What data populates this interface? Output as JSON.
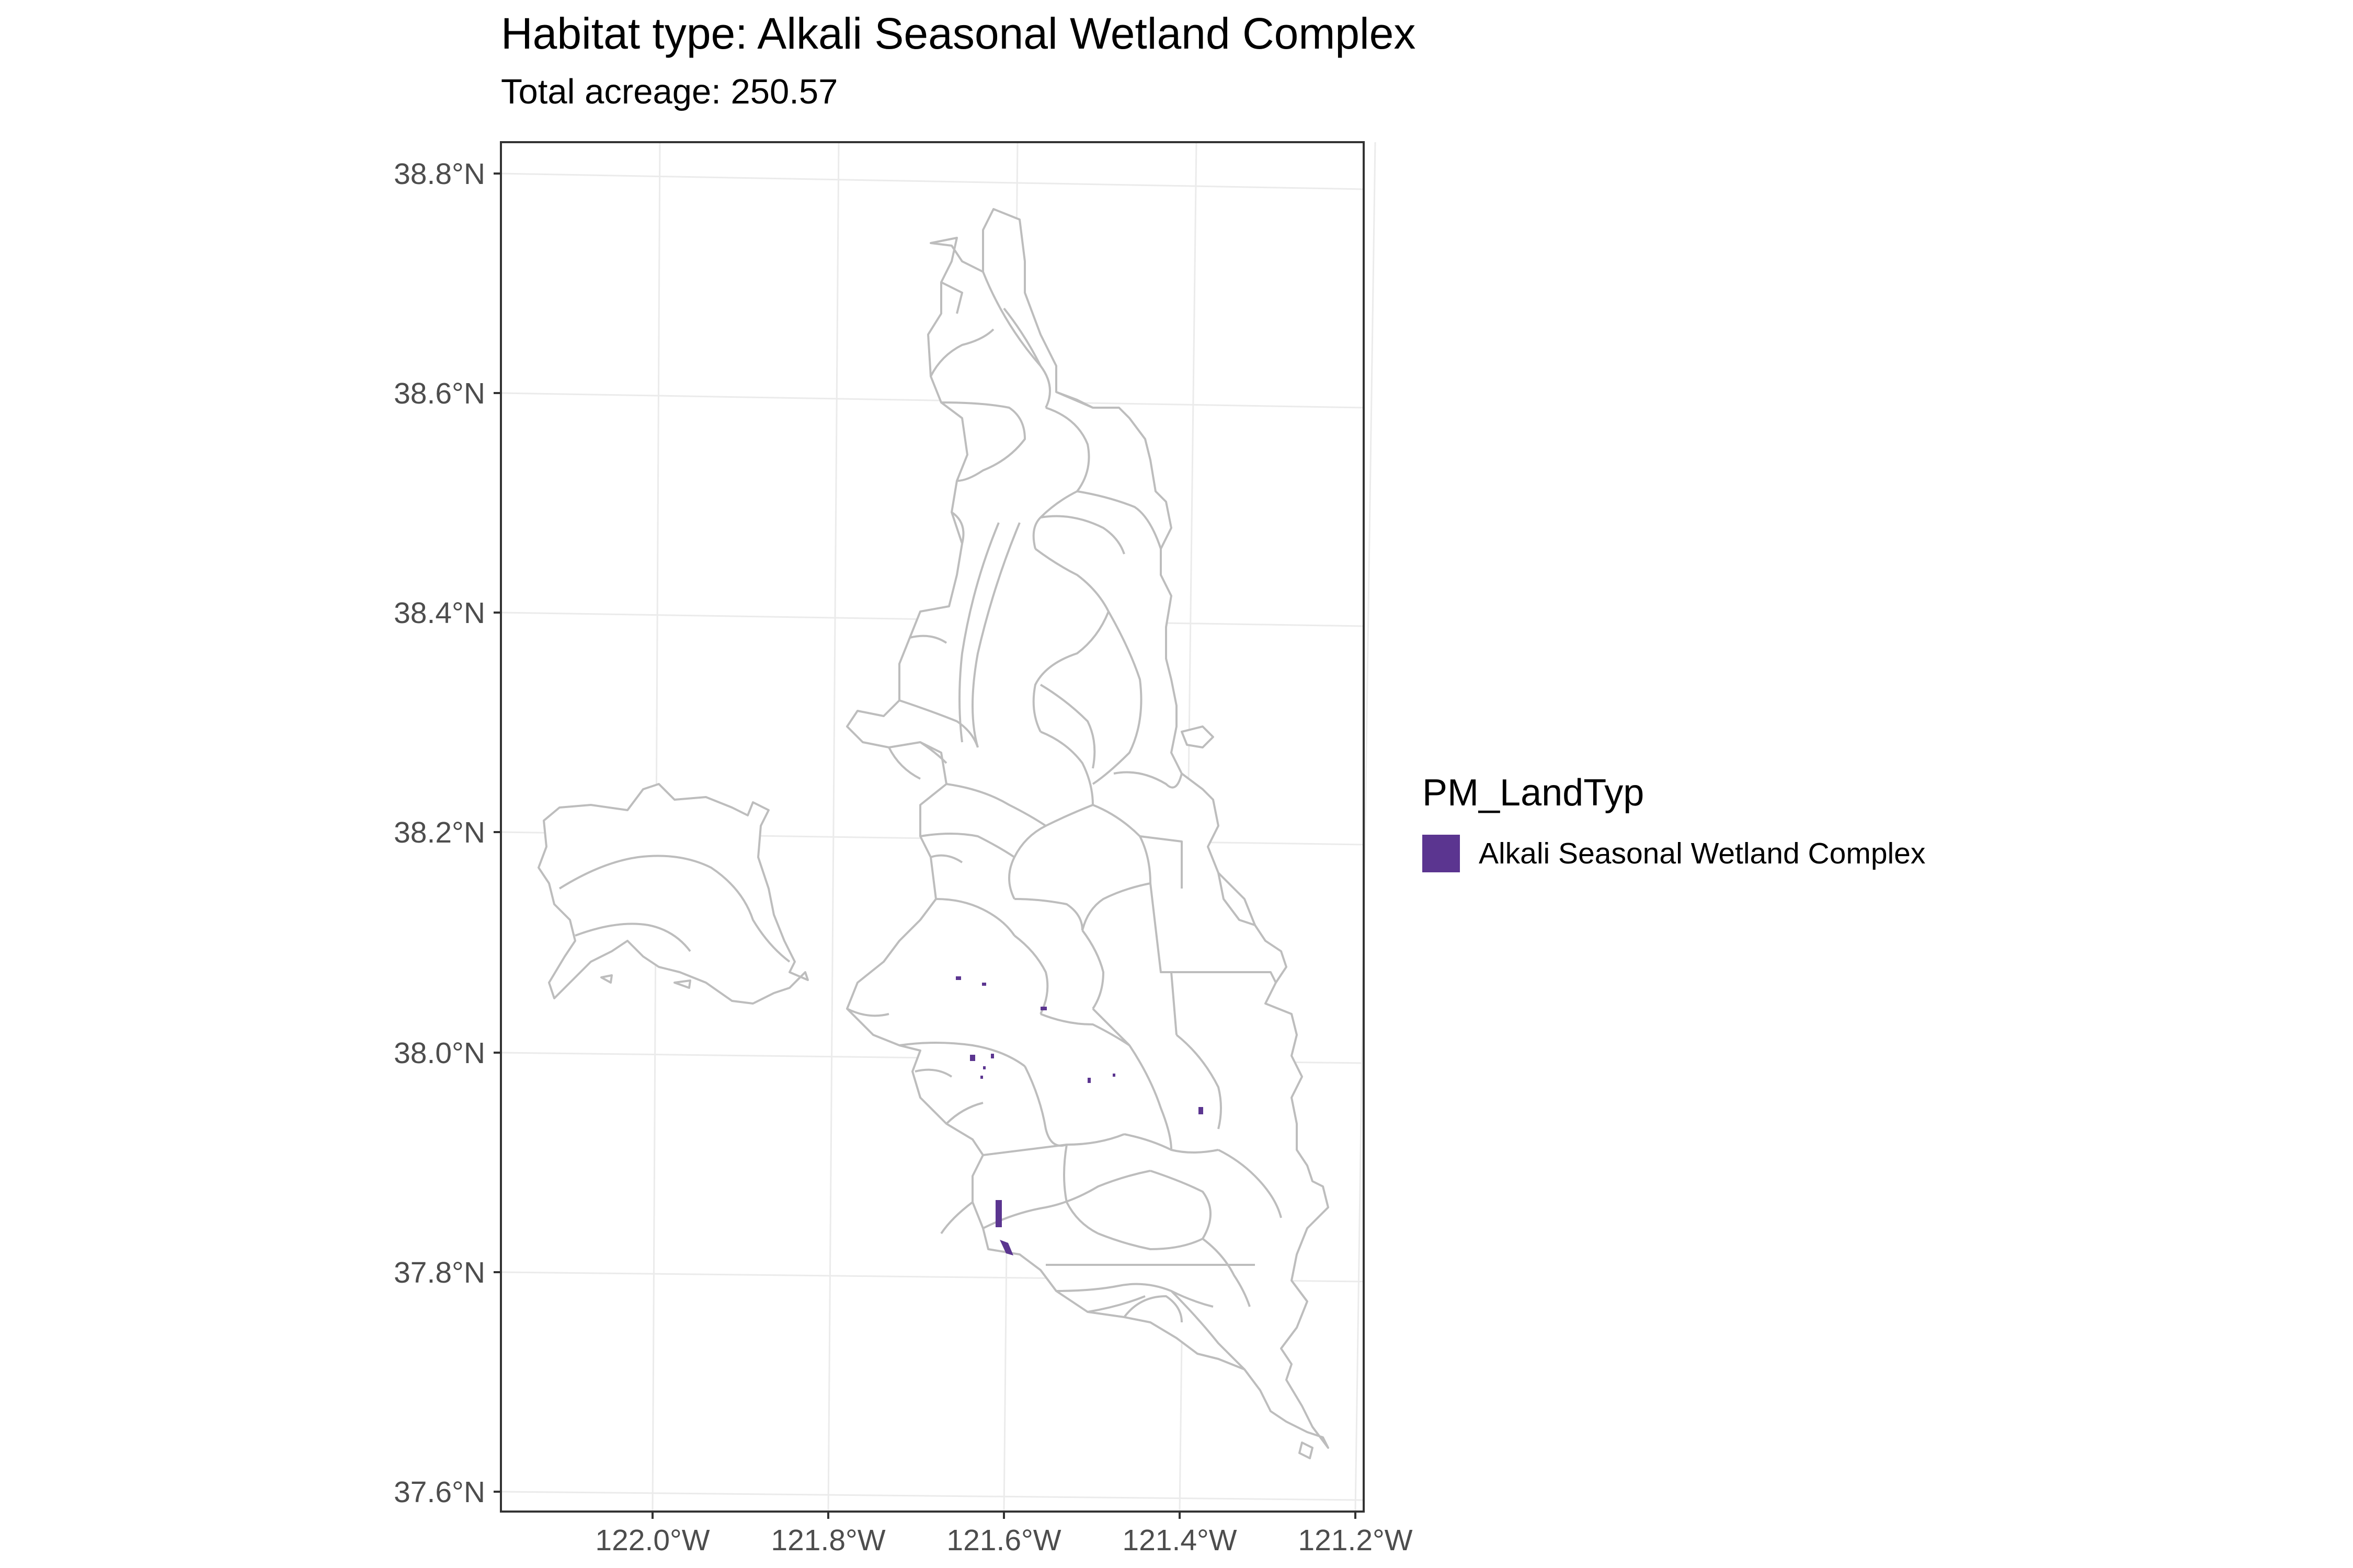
{
  "title": "Habitat type: Alkali Seasonal Wetland Complex",
  "subtitle": "Total acreage: 250.57",
  "map": {
    "lat_ticks": [
      "38.8°N",
      "38.6°N",
      "38.4°N",
      "38.2°N",
      "38.0°N",
      "37.8°N",
      "37.6°N"
    ],
    "lon_ticks": [
      "122.0°W",
      "121.8°W",
      "121.6°W",
      "121.4°W",
      "121.2°W"
    ],
    "lat_range": [
      37.6,
      38.8
    ],
    "lon_range": [
      -122.0,
      -121.2
    ],
    "grid": true,
    "boundary_color": "#bdbdbd",
    "highlight_color": "#5b3590"
  },
  "legend": {
    "title": "PM_LandTyp",
    "items": [
      {
        "label": "Alkali Seasonal Wetland Complex",
        "color": "#5b3590"
      }
    ],
    "placement": "right"
  }
}
